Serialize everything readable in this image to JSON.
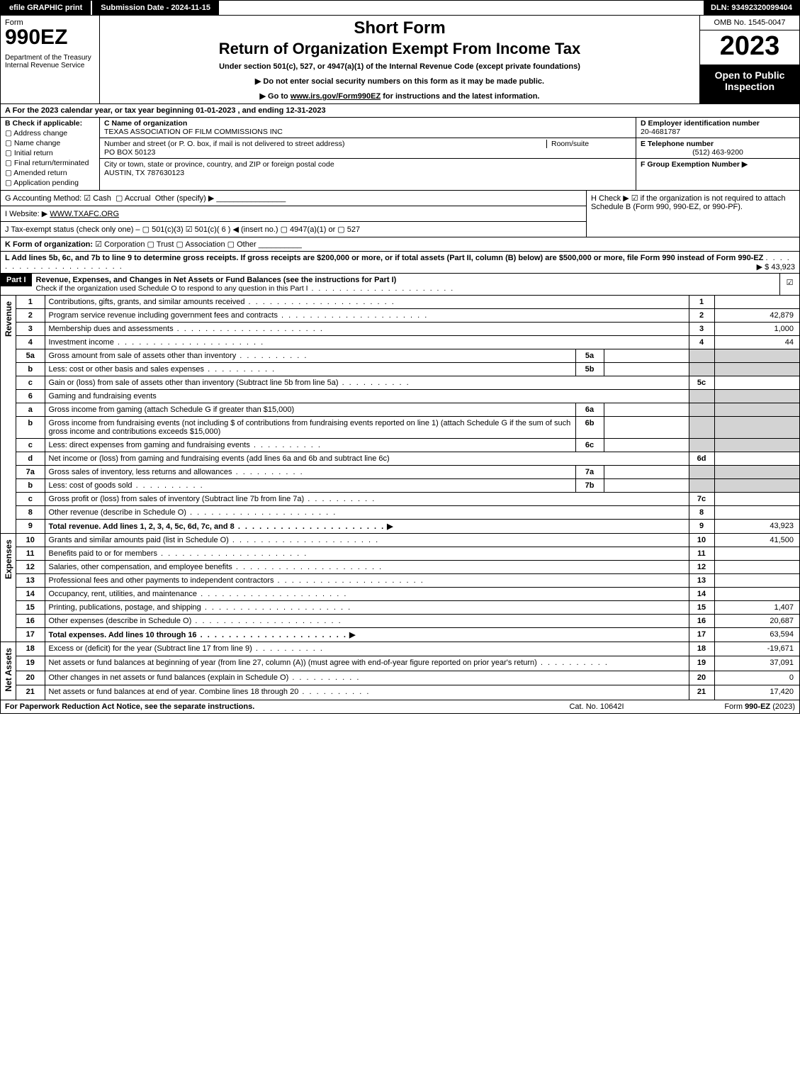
{
  "topbar": {
    "efile_btn": "efile GRAPHIC print",
    "submission_label": "Submission Date - 2024-11-15",
    "dln": "DLN: 93492320099404"
  },
  "header": {
    "form_word": "Form",
    "form_num": "990EZ",
    "dept": "Department of the Treasury\nInternal Revenue Service",
    "short_form": "Short Form",
    "return_title": "Return of Organization Exempt From Income Tax",
    "subtitle": "Under section 501(c), 527, or 4947(a)(1) of the Internal Revenue Code (except private foundations)",
    "instr1": "▶ Do not enter social security numbers on this form as it may be made public.",
    "instr2_pre": "▶ Go to ",
    "instr2_link": "www.irs.gov/Form990EZ",
    "instr2_post": " for instructions and the latest information.",
    "omb": "OMB No. 1545-0047",
    "year": "2023",
    "open_public": "Open to Public Inspection"
  },
  "A": {
    "text": "A  For the 2023 calendar year, or tax year beginning 01-01-2023 , and ending 12-31-2023"
  },
  "B": {
    "lead": "B  Check if applicable:",
    "items": [
      "Address change",
      "Name change",
      "Initial return",
      "Final return/terminated",
      "Amended return",
      "Application pending"
    ]
  },
  "C": {
    "name_lbl": "C Name of organization",
    "name": "TEXAS ASSOCIATION OF FILM COMMISSIONS INC",
    "street_lbl": "Number and street (or P. O. box, if mail is not delivered to street address)",
    "room_lbl": "Room/suite",
    "street": "PO BOX 50123",
    "city_lbl": "City or town, state or province, country, and ZIP or foreign postal code",
    "city": "AUSTIN, TX  787630123"
  },
  "D": {
    "lead": "D Employer identification number",
    "val": "20-4681787"
  },
  "E": {
    "lead": "E Telephone number",
    "val": "(512) 463-9200"
  },
  "F": {
    "lead": "F Group Exemption Number  ▶",
    "val": ""
  },
  "G": {
    "lead": "G Accounting Method:",
    "cash": "Cash",
    "accrual": "Accrual",
    "other": "Other (specify) ▶"
  },
  "H": {
    "text": "H  Check ▶ ☑ if the organization is not required to attach Schedule B (Form 990, 990-EZ, or 990-PF)."
  },
  "I": {
    "lead": "I Website: ▶",
    "val": "WWW.TXAFC.ORG"
  },
  "J": {
    "lead": "J Tax-exempt status (check only one) –",
    "text": "▢ 501(c)(3)  ☑ 501(c)( 6 ) ◀ (insert no.)  ▢ 4947(a)(1) or  ▢ 527"
  },
  "K": {
    "lead": "K Form of organization:",
    "text": "☑ Corporation   ▢ Trust   ▢ Association   ▢ Other"
  },
  "L": {
    "text": "L Add lines 5b, 6c, and 7b to line 9 to determine gross receipts. If gross receipts are $200,000 or more, or if total assets (Part II, column (B) below) are $500,000 or more, file Form 990 instead of Form 990-EZ",
    "amount_label": "▶ $ 43,923"
  },
  "partI": {
    "label": "Part I",
    "title": "Revenue, Expenses, and Changes in Net Assets or Fund Balances (see the instructions for Part I)",
    "sub": "Check if the organization used Schedule O to respond to any question in this Part I"
  },
  "sections": {
    "revenue": "Revenue",
    "expenses": "Expenses",
    "netassets": "Net Assets"
  },
  "lines": {
    "l1": {
      "num": "1",
      "desc": "Contributions, gifts, grants, and similar amounts received",
      "box": "1",
      "amt": ""
    },
    "l2": {
      "num": "2",
      "desc": "Program service revenue including government fees and contracts",
      "box": "2",
      "amt": "42,879"
    },
    "l3": {
      "num": "3",
      "desc": "Membership dues and assessments",
      "box": "3",
      "amt": "1,000"
    },
    "l4": {
      "num": "4",
      "desc": "Investment income",
      "box": "4",
      "amt": "44"
    },
    "l5a": {
      "num": "5a",
      "desc": "Gross amount from sale of assets other than inventory",
      "mini": "5a"
    },
    "l5b": {
      "num": "b",
      "desc": "Less: cost or other basis and sales expenses",
      "mini": "5b"
    },
    "l5c": {
      "num": "c",
      "desc": "Gain or (loss) from sale of assets other than inventory (Subtract line 5b from line 5a)",
      "box": "5c",
      "amt": ""
    },
    "l6": {
      "num": "6",
      "desc": "Gaming and fundraising events"
    },
    "l6a": {
      "num": "a",
      "desc": "Gross income from gaming (attach Schedule G if greater than $15,000)",
      "mini": "6a"
    },
    "l6b": {
      "num": "b",
      "desc": "Gross income from fundraising events (not including $                   of contributions from fundraising events reported on line 1) (attach Schedule G if the sum of such gross income and contributions exceeds $15,000)",
      "mini": "6b"
    },
    "l6c": {
      "num": "c",
      "desc": "Less: direct expenses from gaming and fundraising events",
      "mini": "6c"
    },
    "l6d": {
      "num": "d",
      "desc": "Net income or (loss) from gaming and fundraising events (add lines 6a and 6b and subtract line 6c)",
      "box": "6d",
      "amt": ""
    },
    "l7a": {
      "num": "7a",
      "desc": "Gross sales of inventory, less returns and allowances",
      "mini": "7a"
    },
    "l7b": {
      "num": "b",
      "desc": "Less: cost of goods sold",
      "mini": "7b"
    },
    "l7c": {
      "num": "c",
      "desc": "Gross profit or (loss) from sales of inventory (Subtract line 7b from line 7a)",
      "box": "7c",
      "amt": ""
    },
    "l8": {
      "num": "8",
      "desc": "Other revenue (describe in Schedule O)",
      "box": "8",
      "amt": ""
    },
    "l9": {
      "num": "9",
      "desc": "Total revenue. Add lines 1, 2, 3, 4, 5c, 6d, 7c, and 8",
      "box": "9",
      "amt": "43,923"
    },
    "l10": {
      "num": "10",
      "desc": "Grants and similar amounts paid (list in Schedule O)",
      "box": "10",
      "amt": "41,500"
    },
    "l11": {
      "num": "11",
      "desc": "Benefits paid to or for members",
      "box": "11",
      "amt": ""
    },
    "l12": {
      "num": "12",
      "desc": "Salaries, other compensation, and employee benefits",
      "box": "12",
      "amt": ""
    },
    "l13": {
      "num": "13",
      "desc": "Professional fees and other payments to independent contractors",
      "box": "13",
      "amt": ""
    },
    "l14": {
      "num": "14",
      "desc": "Occupancy, rent, utilities, and maintenance",
      "box": "14",
      "amt": ""
    },
    "l15": {
      "num": "15",
      "desc": "Printing, publications, postage, and shipping",
      "box": "15",
      "amt": "1,407"
    },
    "l16": {
      "num": "16",
      "desc": "Other expenses (describe in Schedule O)",
      "box": "16",
      "amt": "20,687"
    },
    "l17": {
      "num": "17",
      "desc": "Total expenses. Add lines 10 through 16",
      "box": "17",
      "amt": "63,594"
    },
    "l18": {
      "num": "18",
      "desc": "Excess or (deficit) for the year (Subtract line 17 from line 9)",
      "box": "18",
      "amt": "-19,671"
    },
    "l19": {
      "num": "19",
      "desc": "Net assets or fund balances at beginning of year (from line 27, column (A)) (must agree with end-of-year figure reported on prior year's return)",
      "box": "19",
      "amt": "37,091"
    },
    "l20": {
      "num": "20",
      "desc": "Other changes in net assets or fund balances (explain in Schedule O)",
      "box": "20",
      "amt": "0"
    },
    "l21": {
      "num": "21",
      "desc": "Net assets or fund balances at end of year. Combine lines 18 through 20",
      "box": "21",
      "amt": "17,420"
    }
  },
  "footer": {
    "left": "For Paperwork Reduction Act Notice, see the separate instructions.",
    "center": "Cat. No. 10642I",
    "right_pre": "Form ",
    "right_bold": "990-EZ",
    "right_post": " (2023)"
  }
}
